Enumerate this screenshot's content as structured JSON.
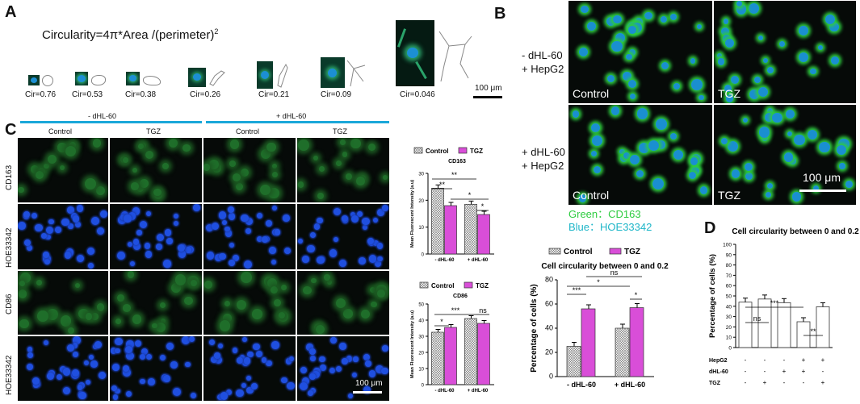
{
  "panels": {
    "a": "A",
    "b": "B",
    "c": "C",
    "d": "D"
  },
  "panel_a": {
    "formula": "Circularity=4π*Area /(perimeter)",
    "formula_sup": "2",
    "cir_labels": [
      "Cir=0.76",
      "Cir=0.53",
      "Cir=0.38",
      "Cir=0.26",
      "Cir=0.21",
      "Cir=0.09",
      "Cir=0.046"
    ],
    "scale_bar": "100 μm"
  },
  "panel_b": {
    "row1_label": [
      "- dHL-60",
      "+ HepG2"
    ],
    "row2_label": [
      "+ dHL-60",
      "+ HepG2"
    ],
    "control": "Control",
    "tgz": "TGZ",
    "scale_bar": "100 μm",
    "legend_green": "Green：CD163",
    "legend_blue": "Blue：HOE33342",
    "green_color": "#2ecc40",
    "blue_color": "#1eb6c8"
  },
  "panel_c": {
    "group_minus": "- dHL-60",
    "group_plus": "+ dHL-60",
    "col_labels": [
      "Control",
      "TGZ",
      "Control",
      "TGZ"
    ],
    "row_labels": [
      "CD163",
      "HOE33342",
      "CD86",
      "HOE33342"
    ],
    "scale_bar": "100 μm",
    "bar_color": "#1aa7d9"
  },
  "chart_data": [
    {
      "type": "bar",
      "title": "CD163",
      "ylabel": "Mean Fluorescent Intensity (a.u)",
      "categories": [
        "- dHL-60",
        "+ dHL-60"
      ],
      "series": [
        {
          "name": "Control",
          "values": [
            24.5,
            18.5
          ]
        },
        {
          "name": "TGZ",
          "values": [
            18.0,
            14.7
          ]
        }
      ],
      "ylim": [
        0,
        30
      ],
      "yticks": [
        "0",
        "10",
        "20",
        "30"
      ],
      "significance": [
        "**",
        "**",
        "*",
        "*"
      ],
      "legend": "top"
    },
    {
      "type": "bar",
      "title": "CD86",
      "ylabel": "Mean Fluorescent Intensity (a.u)",
      "categories": [
        "- dHL-60",
        "+ dHL-60"
      ],
      "series": [
        {
          "name": "Control",
          "values": [
            32.5,
            41.0
          ]
        },
        {
          "name": "TGZ",
          "values": [
            35.5,
            38.0
          ]
        }
      ],
      "ylim": [
        0,
        50
      ],
      "yticks": [
        "0",
        "10",
        "20",
        "30",
        "40",
        "50"
      ],
      "significance": [
        "*",
        "***",
        "ns"
      ],
      "legend": "top"
    },
    {
      "type": "bar",
      "title": "Cell circularity between 0 and 0.2",
      "ylabel": "Percentage of cells (%)",
      "categories": [
        "- dHL-60",
        "+ dHL-60"
      ],
      "series": [
        {
          "name": "Control",
          "values": [
            25,
            40
          ]
        },
        {
          "name": "TGZ",
          "values": [
            56,
            57
          ]
        }
      ],
      "ylim": [
        0,
        80
      ],
      "yticks": [
        "0",
        "20",
        "40",
        "60",
        "80"
      ],
      "significance": [
        "***",
        "*",
        "ns",
        "*"
      ],
      "legend": "top"
    },
    {
      "type": "bar",
      "title": "Cell circularity between 0 and 0.2",
      "ylabel": "Percentage of cells (%)",
      "values": [
        44,
        47,
        43.5,
        25,
        39.5
      ],
      "ylim": [
        0,
        100
      ],
      "yticks": [
        "0",
        "10",
        "20",
        "30",
        "40",
        "50",
        "60",
        "70",
        "80",
        "90",
        "100"
      ],
      "conditions": {
        "HepG2": [
          "-",
          "-",
          "-",
          "+",
          "+"
        ],
        "dHL-60": [
          "-",
          "-",
          "+",
          "+",
          "-"
        ],
        "TGZ": [
          "-",
          "+",
          "-",
          "-",
          "+"
        ]
      },
      "significance": [
        "***",
        "ns",
        "**"
      ]
    }
  ]
}
